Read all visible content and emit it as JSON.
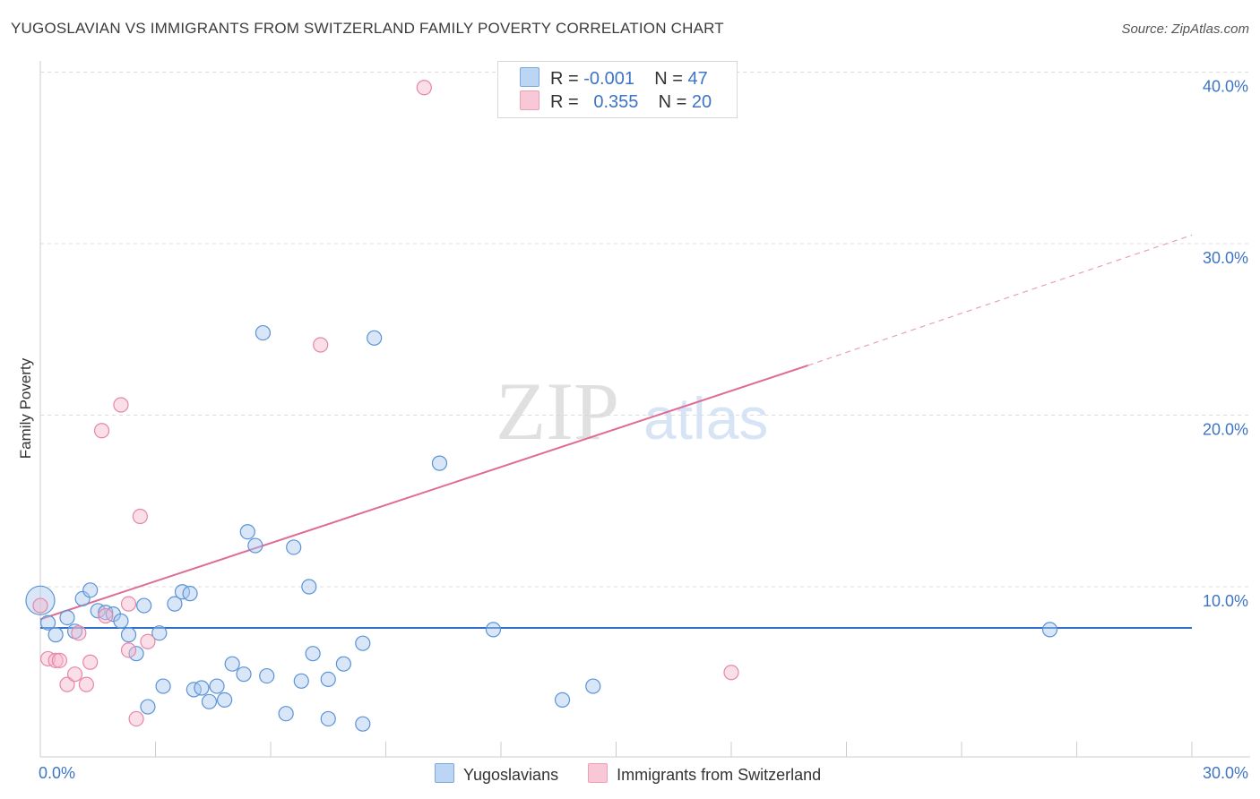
{
  "title": "YUGOSLAVIAN VS IMMIGRANTS FROM SWITZERLAND FAMILY POVERTY CORRELATION CHART",
  "source": "Source: ZipAtlas.com",
  "watermark": {
    "zip": "ZIP",
    "atlas": "atlas"
  },
  "legend": {
    "r_label": "R =",
    "n_label": "N =",
    "series": [
      {
        "name": "Yugoslavians",
        "r": "-0.001",
        "n": "47",
        "fill": "#a8c8f0",
        "stroke": "#5b93d6"
      },
      {
        "name": "Immigrants from Switzerland",
        "r": "0.355",
        "n": "20",
        "fill": "#f6b9cc",
        "stroke": "#e687a6"
      }
    ]
  },
  "chart_data": {
    "type": "scatter",
    "title": "YUGOSLAVIAN VS IMMIGRANTS FROM SWITZERLAND FAMILY POVERTY CORRELATION CHART",
    "xlabel": "",
    "ylabel": "Family Poverty",
    "xlim": [
      0,
      30
    ],
    "ylim": [
      0,
      40
    ],
    "x_tick_labels": [
      "0.0%",
      "30.0%"
    ],
    "y_ticks": [
      10,
      20,
      30,
      40
    ],
    "y_tick_labels": [
      "10.0%",
      "20.0%",
      "30.0%",
      "40.0%"
    ],
    "grid": true,
    "series": [
      {
        "name": "Yugoslavians",
        "color": "#5b93d6",
        "points": [
          [
            0.0,
            9.2
          ],
          [
            0.2,
            7.9
          ],
          [
            0.4,
            7.2
          ],
          [
            0.7,
            8.2
          ],
          [
            0.9,
            7.4
          ],
          [
            1.1,
            9.3
          ],
          [
            1.3,
            9.8
          ],
          [
            1.5,
            8.6
          ],
          [
            1.7,
            8.5
          ],
          [
            1.9,
            8.4
          ],
          [
            2.1,
            8.0
          ],
          [
            2.3,
            7.2
          ],
          [
            2.5,
            6.1
          ],
          [
            2.7,
            8.9
          ],
          [
            2.8,
            3.0
          ],
          [
            3.1,
            7.3
          ],
          [
            3.2,
            4.2
          ],
          [
            3.5,
            9.0
          ],
          [
            3.7,
            9.7
          ],
          [
            3.9,
            9.6
          ],
          [
            4.0,
            4.0
          ],
          [
            4.2,
            4.1
          ],
          [
            4.4,
            3.3
          ],
          [
            4.6,
            4.2
          ],
          [
            4.8,
            3.4
          ],
          [
            5.0,
            5.5
          ],
          [
            5.3,
            4.9
          ],
          [
            5.8,
            24.8
          ],
          [
            5.4,
            13.2
          ],
          [
            5.6,
            12.4
          ],
          [
            5.9,
            4.8
          ],
          [
            6.4,
            2.6
          ],
          [
            6.6,
            12.3
          ],
          [
            6.8,
            4.5
          ],
          [
            7.0,
            10.0
          ],
          [
            7.1,
            6.1
          ],
          [
            7.5,
            4.6
          ],
          [
            7.5,
            2.3
          ],
          [
            7.9,
            5.5
          ],
          [
            8.4,
            6.7
          ],
          [
            8.4,
            2.0
          ],
          [
            8.7,
            24.5
          ],
          [
            10.4,
            17.2
          ],
          [
            11.8,
            7.5
          ],
          [
            13.6,
            3.4
          ],
          [
            14.4,
            4.2
          ],
          [
            26.3,
            7.5
          ]
        ]
      },
      {
        "name": "Immigrants from Switzerland",
        "color": "#e687a6",
        "points": [
          [
            0.0,
            8.9
          ],
          [
            0.2,
            5.8
          ],
          [
            0.4,
            5.7
          ],
          [
            0.5,
            5.7
          ],
          [
            0.7,
            4.3
          ],
          [
            0.9,
            4.9
          ],
          [
            1.0,
            7.3
          ],
          [
            1.2,
            4.3
          ],
          [
            1.3,
            5.6
          ],
          [
            1.7,
            8.3
          ],
          [
            1.6,
            19.1
          ],
          [
            2.1,
            20.6
          ],
          [
            2.3,
            6.3
          ],
          [
            2.3,
            9.0
          ],
          [
            2.5,
            2.3
          ],
          [
            2.6,
            14.1
          ],
          [
            2.8,
            6.8
          ],
          [
            7.3,
            24.1
          ],
          [
            10.0,
            39.1
          ],
          [
            18.0,
            5.0
          ]
        ]
      }
    ],
    "trendlines": [
      {
        "series": "Yugoslavians",
        "x": [
          0,
          30
        ],
        "y": [
          7.6,
          7.6
        ],
        "style": "solid"
      },
      {
        "series": "Immigrants from Switzerland",
        "x": [
          0,
          20
        ],
        "y": [
          8.1,
          22.9
        ],
        "style": "solid",
        "dashed_extension_to": [
          30,
          30.5
        ]
      }
    ]
  }
}
